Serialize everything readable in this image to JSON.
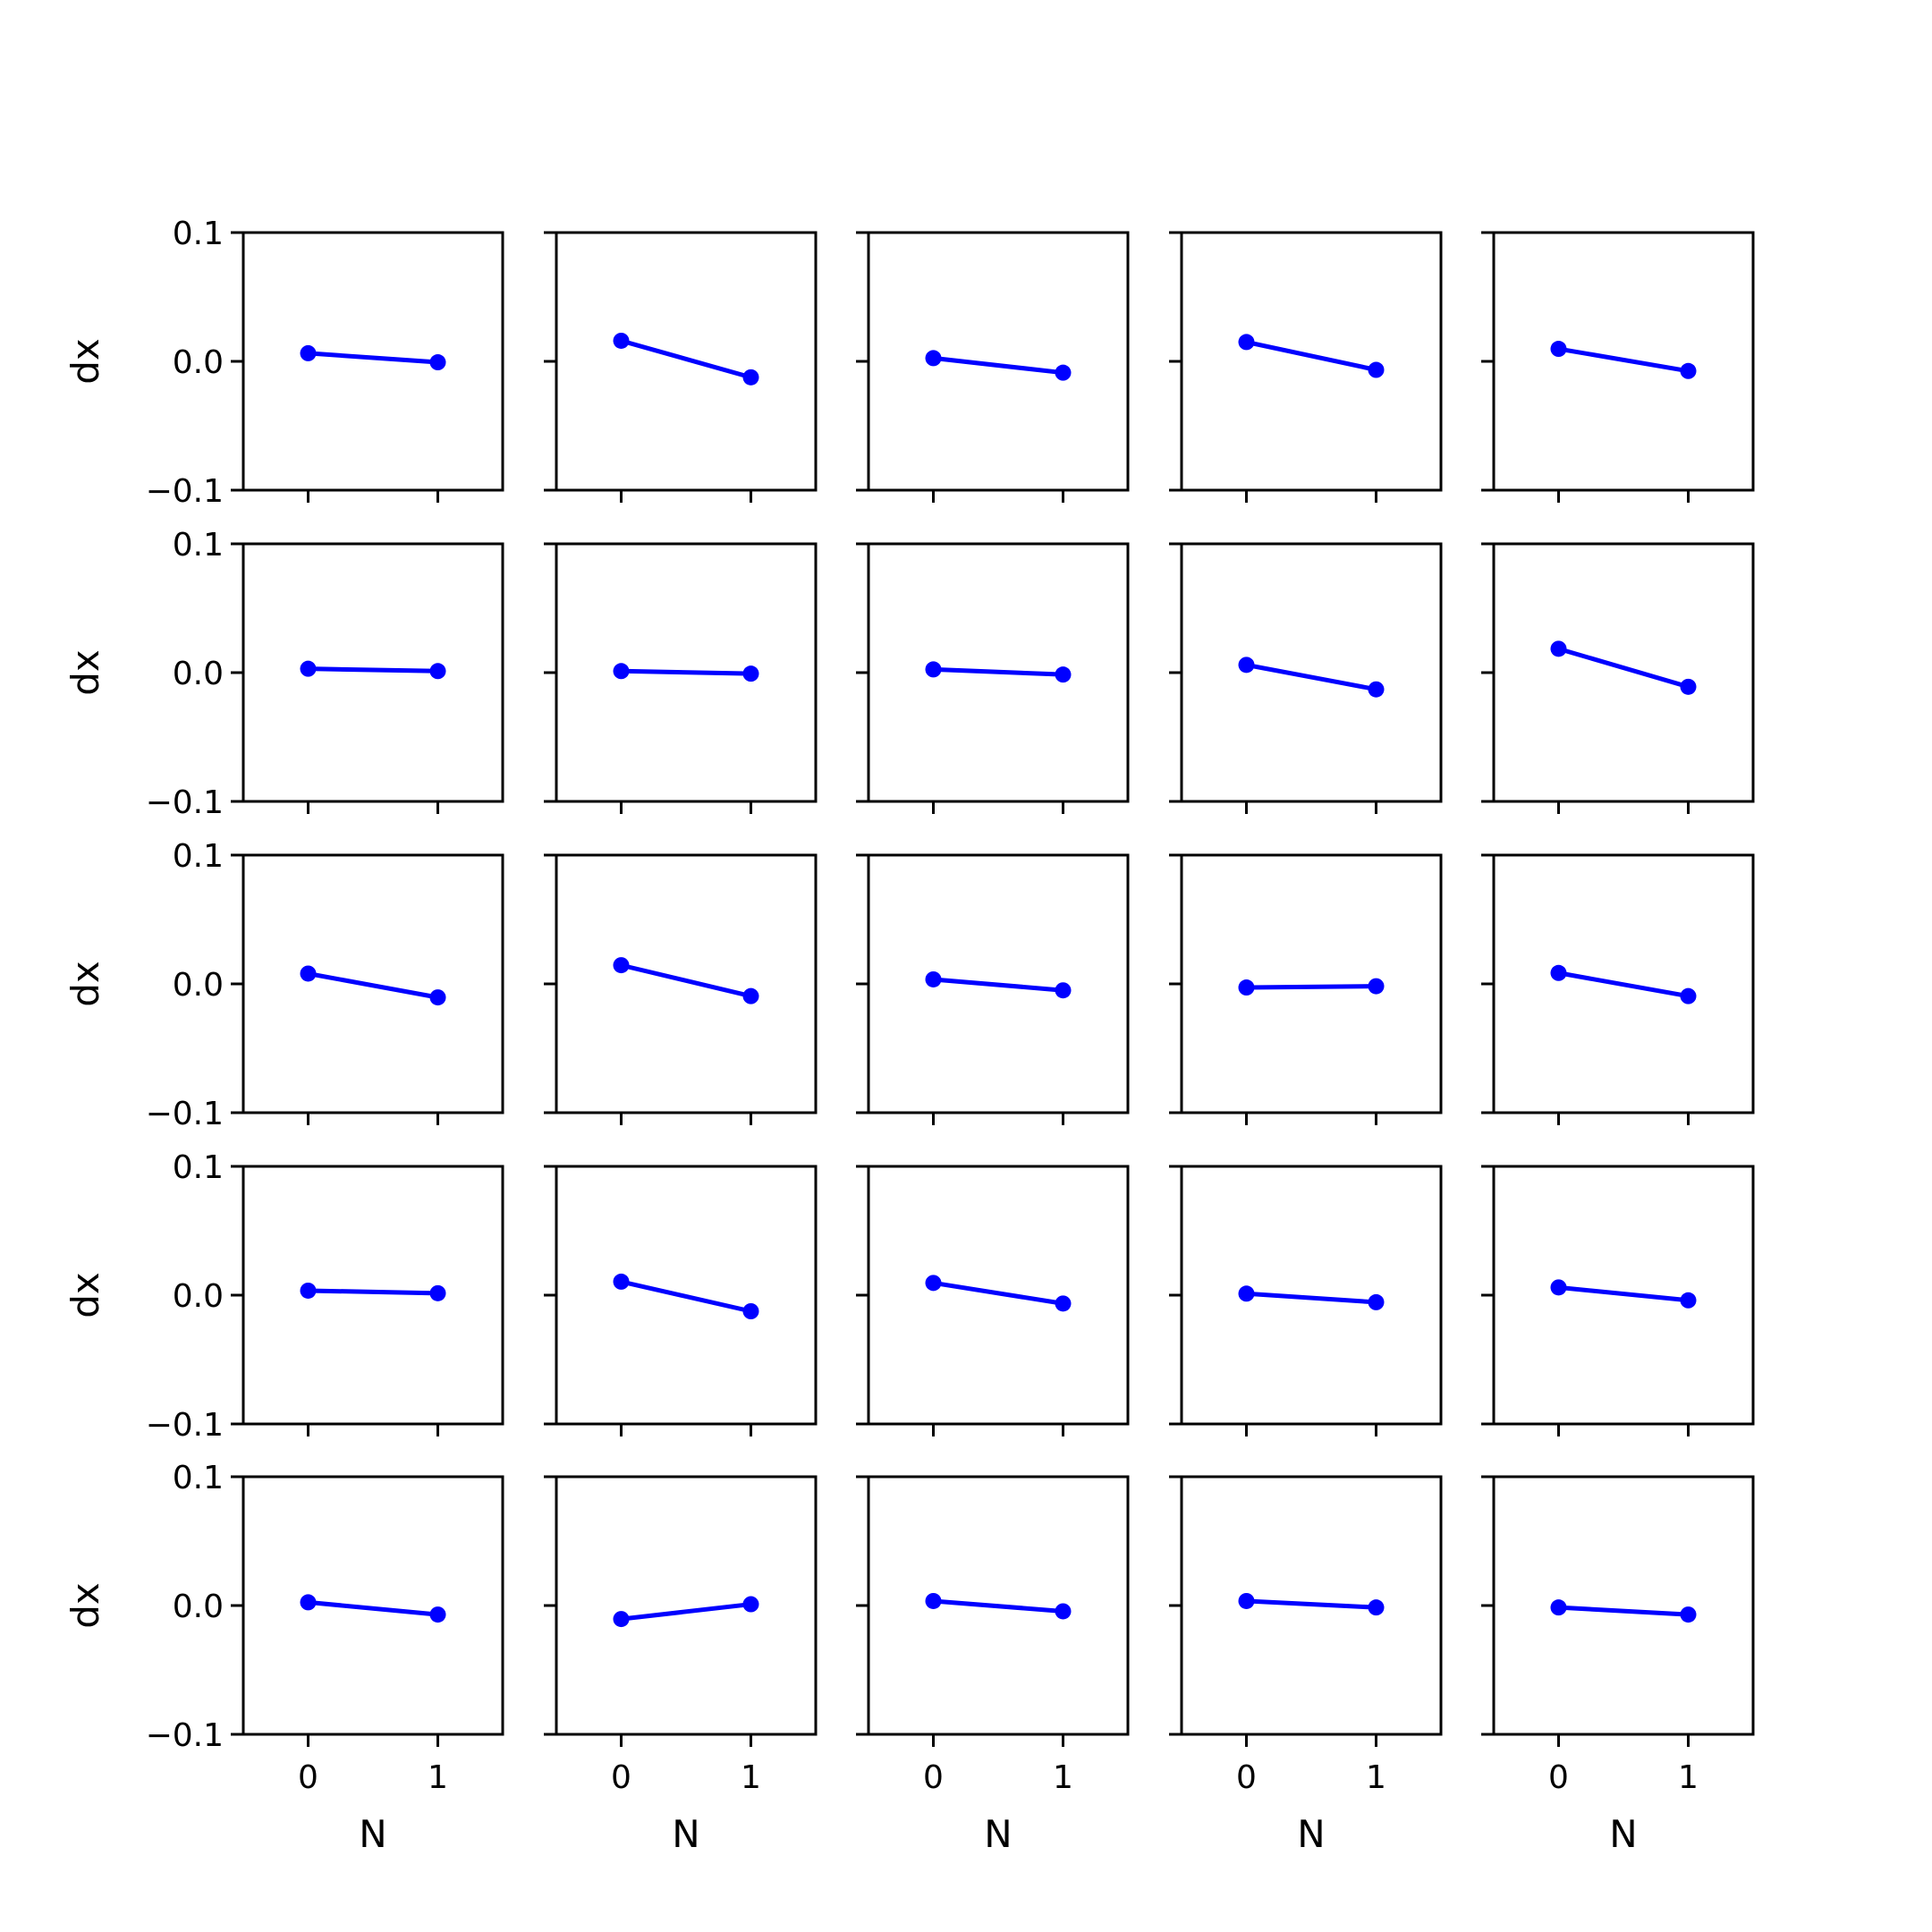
{
  "colors": {
    "series": "#0000ff",
    "axes": "#000000",
    "background": "#ffffff"
  },
  "chart_data": {
    "type": "line",
    "layout": "5x5 small multiples",
    "marker": "circle",
    "x": [
      0,
      1
    ],
    "xticks": [
      "0",
      "1"
    ],
    "xlim": [
      -0.5,
      1.5
    ],
    "ylim": [
      -0.1,
      0.1
    ],
    "yticks": [
      "0.1",
      "0.0",
      "−0.1"
    ],
    "ylabel": "dx",
    "xlabel": "N",
    "grid": false,
    "legend": "none",
    "panels": [
      [
        [
          0.0063,
          -0.0007
        ],
        [
          0.016,
          -0.0124
        ],
        [
          0.0025,
          -0.0088
        ],
        [
          0.015,
          -0.0066
        ],
        [
          0.0097,
          -0.0075
        ]
      ],
      [
        [
          0.003,
          0.0012
        ],
        [
          0.0012,
          -0.0008
        ],
        [
          0.0025,
          -0.0015
        ],
        [
          0.006,
          -0.013
        ],
        [
          0.0185,
          -0.011
        ]
      ],
      [
        [
          0.008,
          -0.0105
        ],
        [
          0.0145,
          -0.0095
        ],
        [
          0.0035,
          -0.005
        ],
        [
          -0.0028,
          -0.0018
        ],
        [
          0.0085,
          -0.0095
        ]
      ],
      [
        [
          0.0035,
          0.0015
        ],
        [
          0.0105,
          -0.0125
        ],
        [
          0.0095,
          -0.0065
        ],
        [
          0.0012,
          -0.0055
        ],
        [
          0.006,
          -0.004
        ]
      ],
      [
        [
          0.0025,
          -0.007
        ],
        [
          -0.0105,
          0.001
        ],
        [
          0.0035,
          -0.0045
        ],
        [
          0.0035,
          -0.0015
        ],
        [
          -0.0015,
          -0.007
        ]
      ]
    ]
  }
}
